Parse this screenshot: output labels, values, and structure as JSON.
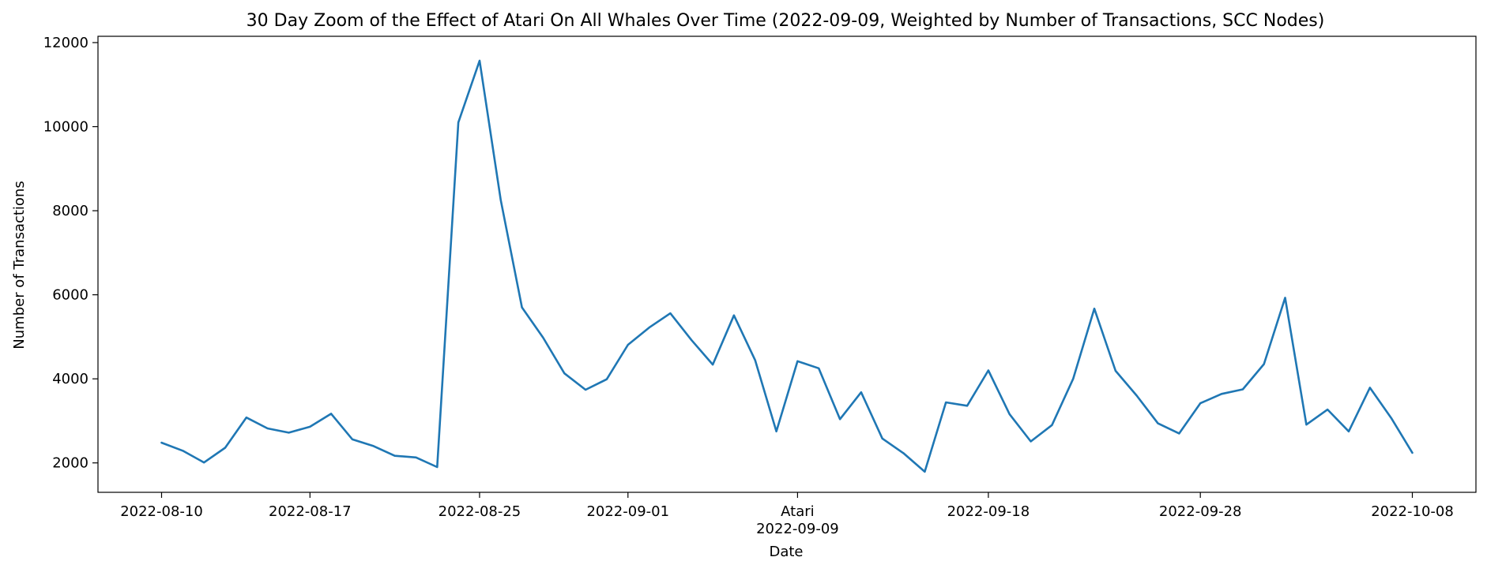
{
  "chart_data": {
    "type": "line",
    "title": "30 Day Zoom of the Effect of Atari On All Whales Over Time (2022-09-09, Weighted by Number of Transactions, SCC Nodes)",
    "xlabel": "Date",
    "ylabel": "Number of Transactions",
    "xlim": [
      "2022-08-07",
      "2022-10-11"
    ],
    "ylim": [
      1300,
      12150
    ],
    "grid": false,
    "line_color": "#1f77b4",
    "yticks": [
      2000,
      4000,
      6000,
      8000,
      10000,
      12000
    ],
    "xticks": [
      {
        "date": "2022-08-10",
        "label": "2022-08-10"
      },
      {
        "date": "2022-08-17",
        "label": "2022-08-17"
      },
      {
        "date": "2022-08-25",
        "label": "2022-08-25"
      },
      {
        "date": "2022-09-01",
        "label": "2022-09-01"
      },
      {
        "date": "2022-09-09",
        "label": "Atari"
      },
      {
        "date": "2022-09-18",
        "label": "2022-09-18"
      },
      {
        "date": "2022-09-28",
        "label": "2022-09-28"
      },
      {
        "date": "2022-10-08",
        "label": "2022-10-08"
      }
    ],
    "event_label": "2022-09-09",
    "series": [
      {
        "x": [
          "2022-08-10",
          "2022-08-11",
          "2022-08-12",
          "2022-08-13",
          "2022-08-14",
          "2022-08-15",
          "2022-08-16",
          "2022-08-17",
          "2022-08-18",
          "2022-08-19",
          "2022-08-20",
          "2022-08-21",
          "2022-08-22",
          "2022-08-23",
          "2022-08-24",
          "2022-08-25",
          "2022-08-26",
          "2022-08-27",
          "2022-08-28",
          "2022-08-29",
          "2022-08-30",
          "2022-08-31",
          "2022-09-01",
          "2022-09-02",
          "2022-09-03",
          "2022-09-04",
          "2022-09-05",
          "2022-09-06",
          "2022-09-07",
          "2022-09-08",
          "2022-09-09",
          "2022-09-10",
          "2022-09-11",
          "2022-09-12",
          "2022-09-13",
          "2022-09-14",
          "2022-09-15",
          "2022-09-16",
          "2022-09-17",
          "2022-09-18",
          "2022-09-19",
          "2022-09-20",
          "2022-09-21",
          "2022-09-22",
          "2022-09-23",
          "2022-09-24",
          "2022-09-25",
          "2022-09-26",
          "2022-09-27",
          "2022-09-28",
          "2022-09-29",
          "2022-09-30",
          "2022-10-01",
          "2022-10-02",
          "2022-10-03",
          "2022-10-04",
          "2022-10-05",
          "2022-10-06",
          "2022-10-07",
          "2022-10-08"
        ],
        "y": [
          2480,
          2290,
          2010,
          2360,
          3080,
          2820,
          2720,
          2860,
          3170,
          2560,
          2400,
          2170,
          2130,
          1900,
          10100,
          11570,
          8250,
          5700,
          4980,
          4130,
          3740,
          3990,
          4810,
          5220,
          5560,
          4920,
          4340,
          5510,
          4440,
          2750,
          4420,
          4250,
          3040,
          3680,
          2580,
          2230,
          1790,
          3440,
          3360,
          4200,
          3160,
          2510,
          2900,
          4000,
          5670,
          4190,
          3600,
          2940,
          2700,
          3420,
          3640,
          3750,
          4350,
          5930,
          2910,
          3270,
          2750,
          3790,
          3070,
          2240
        ]
      }
    ]
  }
}
